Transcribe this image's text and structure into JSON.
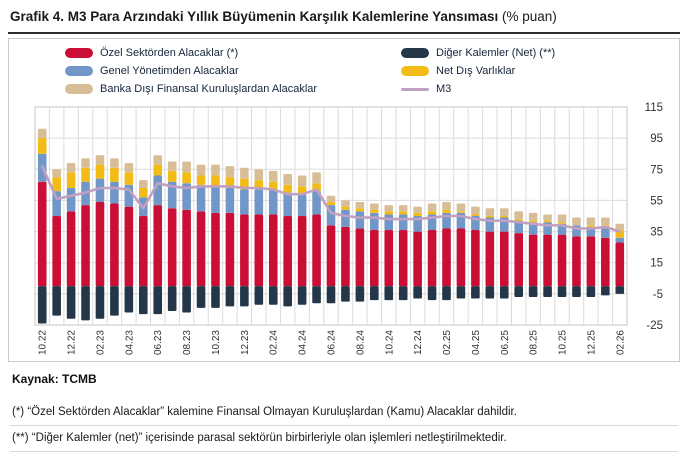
{
  "title": {
    "main": "Grafik 4. M3 Para Arzındaki Yıllık Büyümenin Karşılık Kalemlerine Yansıması",
    "suffix": " (% puan)"
  },
  "source": "Kaynak: TCMB",
  "footnotes": [
    "(*) “Özel Sektörden Alacaklar” kalemine Finansal Olmayan Kuruluşlardan (Kamu) Alacaklar dahildir.",
    "(**) “Diğer Kalemler (net)” içerisinde parasal sektörün birbirleriyle olan işlemleri netleştirilmektedir."
  ],
  "colors": {
    "ozel": "#cb0e35",
    "genel": "#7197c8",
    "bdfk": "#d8be97",
    "diger": "#233749",
    "ndv": "#f2bb16",
    "m3": "#c2a0c2",
    "grid": "#dcdcdc",
    "plot_border": "#c6c6c6",
    "axis_text": "#333333"
  },
  "legend": {
    "columns": [
      [
        {
          "label": "Özel Sektörden Alacaklar (*)",
          "swatch": "ozel",
          "kind": "box"
        },
        {
          "label": "Genel Yönetimden Alacaklar",
          "swatch": "genel",
          "kind": "box"
        },
        {
          "label": "Banka Dışı Finansal Kuruluşlardan Alacaklar",
          "swatch": "bdfk",
          "kind": "box"
        }
      ],
      [
        {
          "label": "Diğer Kalemler (Net) (**)",
          "swatch": "diger",
          "kind": "box"
        },
        {
          "label": "Net Dış Varlıklar",
          "swatch": "ndv",
          "kind": "box"
        },
        {
          "label": "M3",
          "swatch": "m3",
          "kind": "line"
        }
      ]
    ]
  },
  "chart_data": {
    "type": "bar",
    "stacked": true,
    "title": "Grafik 4. M3 Para Arzındaki Yıllık Büyümenin Karşılık Kalemlerine Yansıması (% puan)",
    "xlabel": "",
    "ylabel": "",
    "ylim": [
      -25,
      115
    ],
    "yticks": [
      -25,
      -5,
      15,
      35,
      55,
      75,
      95,
      115
    ],
    "grid": true,
    "legend_position": "top",
    "categories": [
      "10.22",
      "11.22",
      "12.22",
      "01.23",
      "02.23",
      "03.23",
      "04.23",
      "05.23",
      "06.23",
      "07.23",
      "08.23",
      "09.23",
      "10.23",
      "11.23",
      "12.23",
      "01.24",
      "02.24",
      "03.24",
      "04.24",
      "05.24",
      "06.24",
      "07.24",
      "08.24",
      "09.24",
      "10.24",
      "11.24",
      "12.24",
      "01.25",
      "02.25",
      "03.25",
      "04.25",
      "05.25",
      "06.25",
      "07.25",
      "08.25",
      "09.25",
      "10.25",
      "11.25",
      "12.25",
      "01.26",
      "02.26"
    ],
    "x_tick_labels_shown": [
      "10.22",
      "12.22",
      "02.23",
      "04.23",
      "06.23",
      "08.23",
      "10.23",
      "12.23",
      "02.24",
      "04.24",
      "06.24",
      "08.24",
      "10.24",
      "12.24",
      "02.25",
      "04.25",
      "06.25",
      "08.25",
      "10.25",
      "12.25",
      "02.26"
    ],
    "series": [
      {
        "name": "Özel Sektörden Alacaklar (*)",
        "color_key": "ozel",
        "values": [
          67,
          45,
          48,
          52,
          54,
          53,
          51,
          45,
          52,
          50,
          49,
          48,
          47,
          47,
          46,
          46,
          46,
          45,
          45,
          46,
          39,
          38,
          37,
          36,
          36,
          36,
          35,
          36,
          37,
          37,
          36,
          35,
          35,
          34,
          33,
          33,
          33,
          32,
          32,
          31,
          28
        ]
      },
      {
        "name": "Genel Yönetimden Alacaklar",
        "color_key": "genel",
        "values": [
          18,
          16,
          15,
          15,
          15,
          14,
          14,
          12,
          19,
          17,
          17,
          17,
          17,
          16,
          16,
          16,
          16,
          15,
          14,
          15,
          13,
          11,
          11,
          11,
          10,
          10,
          10,
          10,
          10,
          10,
          9,
          9,
          9,
          8,
          8,
          8,
          7,
          7,
          6,
          6,
          3
        ]
      },
      {
        "name": "Net Dış Varlıklar",
        "color_key": "ndv",
        "values": [
          10,
          9,
          10,
          9,
          9,
          9,
          8,
          6,
          7,
          7,
          7,
          6,
          7,
          7,
          7,
          6,
          5,
          5,
          5,
          5,
          2,
          2,
          2,
          2,
          2,
          2,
          2,
          2,
          2,
          1,
          1,
          1,
          1,
          1,
          1,
          1,
          1,
          0,
          1,
          2,
          5
        ]
      },
      {
        "name": "Banka Dışı Finansal Kuruluşlardan Alacaklar",
        "color_key": "bdfk",
        "values": [
          6,
          5,
          6,
          6,
          6,
          6,
          6,
          5,
          6,
          6,
          7,
          7,
          7,
          7,
          7,
          7,
          7,
          7,
          7,
          7,
          4,
          4,
          4,
          4,
          4,
          4,
          4,
          5,
          5,
          5,
          5,
          5,
          5,
          5,
          5,
          4,
          5,
          5,
          5,
          5,
          4
        ]
      },
      {
        "name": "Diğer Kalemler (Net) (**)",
        "color_key": "diger",
        "values": [
          -24,
          -19,
          -21,
          -22,
          -21,
          -19,
          -17,
          -18,
          -18,
          -16,
          -17,
          -14,
          -14,
          -13,
          -13,
          -12,
          -12,
          -13,
          -12,
          -11,
          -11,
          -10,
          -10,
          -9,
          -9,
          -9,
          -8,
          -9,
          -9,
          -8,
          -8,
          -8,
          -8,
          -7,
          -7,
          -7,
          -7,
          -7,
          -7,
          -6,
          -5
        ]
      }
    ],
    "line_series": {
      "name": "M3",
      "color_key": "m3",
      "values": [
        77,
        56,
        58,
        60,
        63,
        63,
        62,
        50,
        66,
        64,
        63,
        64,
        64,
        64,
        63,
        63,
        62,
        59,
        59,
        62,
        47,
        45,
        44,
        44,
        43,
        43,
        43,
        44,
        45,
        45,
        43,
        42,
        42,
        41,
        40,
        39,
        39,
        37,
        37,
        38,
        35
      ]
    }
  }
}
